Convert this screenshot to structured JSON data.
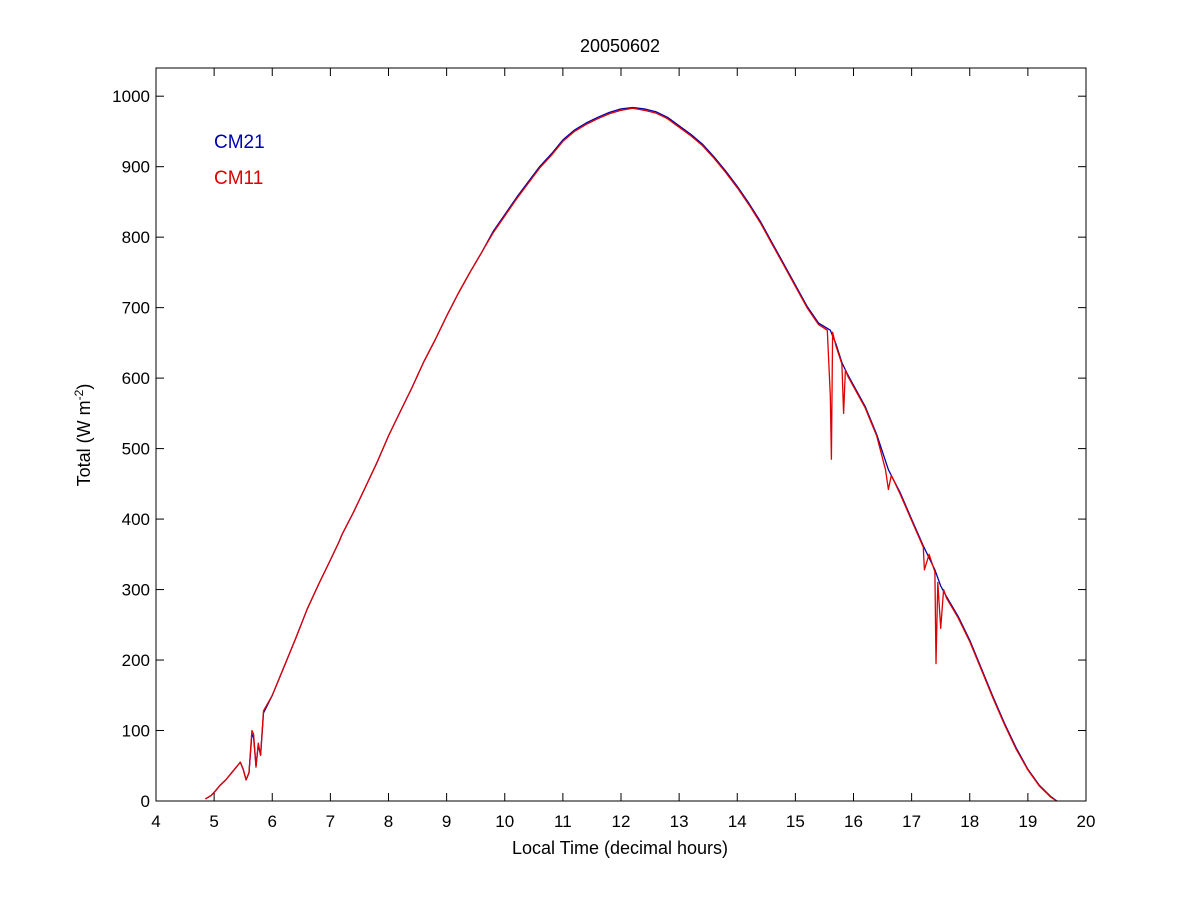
{
  "chart_data": {
    "type": "line",
    "title": "20050602",
    "xlabel": "Local Time (decimal hours)",
    "ylabel_main": "Total (W m",
    "ylabel_sup": "-2",
    "ylabel_close": ")",
    "xlim": [
      4,
      20
    ],
    "ylim": [
      0,
      1040
    ],
    "x_ticks": [
      4,
      5,
      6,
      7,
      8,
      9,
      10,
      11,
      12,
      13,
      14,
      15,
      16,
      17,
      18,
      19,
      20
    ],
    "y_ticks": [
      0,
      100,
      200,
      300,
      400,
      500,
      600,
      700,
      800,
      900,
      1000
    ],
    "grid": false,
    "legend_placement": "top-left",
    "series": [
      {
        "name": "CM21",
        "color": "#0000b0",
        "points": [
          [
            4.85,
            3
          ],
          [
            4.95,
            8
          ],
          [
            5.02,
            14
          ],
          [
            5.1,
            22
          ],
          [
            5.2,
            30
          ],
          [
            5.3,
            40
          ],
          [
            5.4,
            50
          ],
          [
            5.45,
            55
          ],
          [
            5.5,
            45
          ],
          [
            5.55,
            30
          ],
          [
            5.6,
            40
          ],
          [
            5.65,
            95
          ],
          [
            5.68,
            90
          ],
          [
            5.72,
            50
          ],
          [
            5.76,
            80
          ],
          [
            5.8,
            65
          ],
          [
            5.85,
            125
          ],
          [
            6.0,
            150
          ],
          [
            6.2,
            190
          ],
          [
            6.4,
            230
          ],
          [
            6.6,
            272
          ],
          [
            6.8,
            308
          ],
          [
            7.0,
            342
          ],
          [
            7.15,
            368
          ],
          [
            7.2,
            378
          ],
          [
            7.4,
            410
          ],
          [
            7.6,
            445
          ],
          [
            7.8,
            480
          ],
          [
            8.0,
            518
          ],
          [
            8.2,
            552
          ],
          [
            8.4,
            586
          ],
          [
            8.6,
            622
          ],
          [
            8.8,
            654
          ],
          [
            9.0,
            688
          ],
          [
            9.2,
            720
          ],
          [
            9.4,
            750
          ],
          [
            9.6,
            778
          ],
          [
            9.8,
            808
          ],
          [
            10.0,
            832
          ],
          [
            10.2,
            856
          ],
          [
            10.4,
            878
          ],
          [
            10.6,
            900
          ],
          [
            10.8,
            918
          ],
          [
            11.0,
            938
          ],
          [
            11.2,
            952
          ],
          [
            11.4,
            962
          ],
          [
            11.6,
            970
          ],
          [
            11.8,
            977
          ],
          [
            12.0,
            982
          ],
          [
            12.2,
            984
          ],
          [
            12.4,
            982
          ],
          [
            12.6,
            978
          ],
          [
            12.8,
            970
          ],
          [
            13.0,
            958
          ],
          [
            13.2,
            946
          ],
          [
            13.4,
            932
          ],
          [
            13.6,
            914
          ],
          [
            13.8,
            894
          ],
          [
            14.0,
            872
          ],
          [
            14.2,
            848
          ],
          [
            14.4,
            822
          ],
          [
            14.6,
            792
          ],
          [
            14.8,
            762
          ],
          [
            15.0,
            732
          ],
          [
            15.2,
            702
          ],
          [
            15.4,
            678
          ],
          [
            15.6,
            668
          ],
          [
            15.7,
            648
          ],
          [
            15.8,
            622
          ],
          [
            15.9,
            605
          ],
          [
            16.0,
            590
          ],
          [
            16.2,
            560
          ],
          [
            16.4,
            520
          ],
          [
            16.6,
            470
          ],
          [
            16.8,
            438
          ],
          [
            17.0,
            400
          ],
          [
            17.2,
            362
          ],
          [
            17.4,
            328
          ],
          [
            17.5,
            305
          ],
          [
            17.6,
            290
          ],
          [
            17.8,
            262
          ],
          [
            18.0,
            228
          ],
          [
            18.2,
            188
          ],
          [
            18.4,
            148
          ],
          [
            18.6,
            110
          ],
          [
            18.8,
            75
          ],
          [
            19.0,
            45
          ],
          [
            19.2,
            22
          ],
          [
            19.4,
            6
          ],
          [
            19.5,
            0
          ]
        ]
      },
      {
        "name": "CM11",
        "color": "#dd0000",
        "points": [
          [
            4.85,
            3
          ],
          [
            4.95,
            8
          ],
          [
            5.02,
            14
          ],
          [
            5.1,
            22
          ],
          [
            5.2,
            30
          ],
          [
            5.3,
            40
          ],
          [
            5.4,
            50
          ],
          [
            5.45,
            55
          ],
          [
            5.5,
            45
          ],
          [
            5.55,
            30
          ],
          [
            5.6,
            40
          ],
          [
            5.65,
            100
          ],
          [
            5.68,
            95
          ],
          [
            5.72,
            48
          ],
          [
            5.76,
            82
          ],
          [
            5.8,
            65
          ],
          [
            5.85,
            128
          ],
          [
            6.0,
            150
          ],
          [
            6.2,
            190
          ],
          [
            6.4,
            230
          ],
          [
            6.6,
            272
          ],
          [
            6.8,
            308
          ],
          [
            7.0,
            342
          ],
          [
            7.15,
            368
          ],
          [
            7.2,
            378
          ],
          [
            7.4,
            410
          ],
          [
            7.6,
            445
          ],
          [
            7.8,
            480
          ],
          [
            8.0,
            518
          ],
          [
            8.2,
            552
          ],
          [
            8.4,
            586
          ],
          [
            8.6,
            622
          ],
          [
            8.8,
            654
          ],
          [
            9.0,
            688
          ],
          [
            9.2,
            720
          ],
          [
            9.4,
            750
          ],
          [
            9.6,
            778
          ],
          [
            9.8,
            806
          ],
          [
            10.0,
            830
          ],
          [
            10.2,
            854
          ],
          [
            10.4,
            876
          ],
          [
            10.6,
            898
          ],
          [
            10.8,
            916
          ],
          [
            11.0,
            936
          ],
          [
            11.2,
            950
          ],
          [
            11.4,
            960
          ],
          [
            11.6,
            968
          ],
          [
            11.8,
            975
          ],
          [
            12.0,
            980
          ],
          [
            12.2,
            983
          ],
          [
            12.4,
            980
          ],
          [
            12.6,
            976
          ],
          [
            12.8,
            968
          ],
          [
            13.0,
            956
          ],
          [
            13.2,
            944
          ],
          [
            13.4,
            930
          ],
          [
            13.6,
            912
          ],
          [
            13.8,
            892
          ],
          [
            14.0,
            870
          ],
          [
            14.2,
            846
          ],
          [
            14.4,
            820
          ],
          [
            14.6,
            790
          ],
          [
            14.8,
            760
          ],
          [
            15.0,
            730
          ],
          [
            15.2,
            700
          ],
          [
            15.4,
            676
          ],
          [
            15.55,
            668
          ],
          [
            15.6,
            575
          ],
          [
            15.62,
            485
          ],
          [
            15.64,
            665
          ],
          [
            15.7,
            645
          ],
          [
            15.8,
            620
          ],
          [
            15.83,
            550
          ],
          [
            15.86,
            612
          ],
          [
            15.9,
            603
          ],
          [
            16.0,
            588
          ],
          [
            16.2,
            558
          ],
          [
            16.4,
            518
          ],
          [
            16.55,
            470
          ],
          [
            16.6,
            442
          ],
          [
            16.65,
            462
          ],
          [
            16.8,
            436
          ],
          [
            17.0,
            398
          ],
          [
            17.2,
            360
          ],
          [
            17.22,
            328
          ],
          [
            17.3,
            350
          ],
          [
            17.4,
            325
          ],
          [
            17.42,
            195
          ],
          [
            17.45,
            310
          ],
          [
            17.5,
            245
          ],
          [
            17.55,
            300
          ],
          [
            17.6,
            288
          ],
          [
            17.8,
            260
          ],
          [
            18.0,
            226
          ],
          [
            18.2,
            186
          ],
          [
            18.4,
            146
          ],
          [
            18.6,
            108
          ],
          [
            18.8,
            73
          ],
          [
            19.0,
            44
          ],
          [
            19.2,
            21
          ],
          [
            19.4,
            5
          ],
          [
            19.5,
            0
          ]
        ]
      }
    ]
  }
}
